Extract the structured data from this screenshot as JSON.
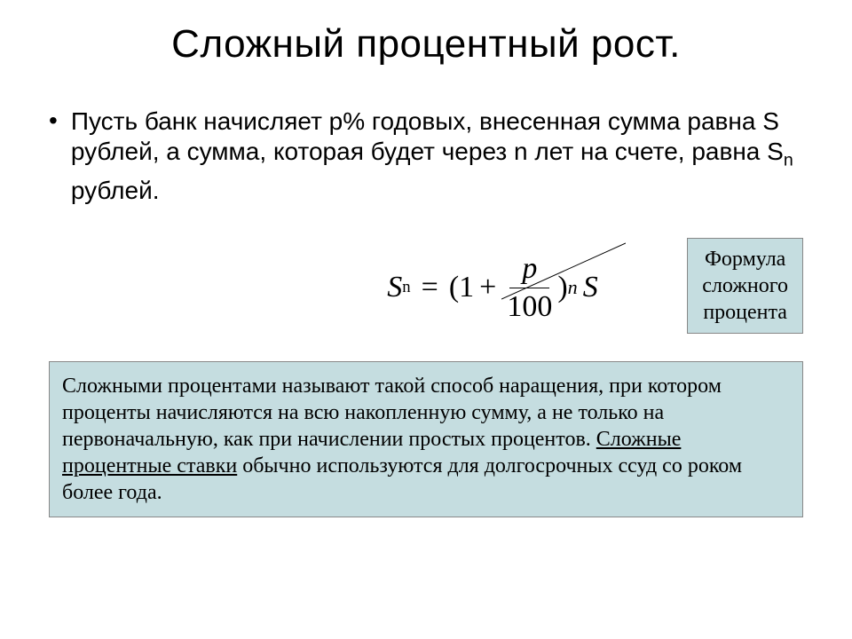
{
  "title": "Сложный процентный рост.",
  "bullet_html": "Пусть банк начисляет р% годовых, внесенная сумма равна S рублей, а сумма, которая будет через n лет на счете, равна S<span class=\"sub\">n</span> рублей.",
  "formula": {
    "lhs_var": "S",
    "lhs_sub": "n",
    "eq": "=",
    "one": "1",
    "plus": "+",
    "frac_num": "p",
    "frac_den": "100",
    "close_paren": ")",
    "exp": "n",
    "tail": "S"
  },
  "callout": {
    "line1": "Формула",
    "line2": "сложного",
    "line3": "процента",
    "bg": "#c5dde0"
  },
  "definition_html": "Сложными процентами называют такой способ наращения, при котором проценты начисляются на всю накопленную сумму, а не только на первоначальную, как при начислении простых процентов. <span class=\"underline\">Сложные процентные ставки</span> обычно используются для долгосрочных ссуд со роком более года.",
  "colors": {
    "background": "#ffffff",
    "box_bg": "#c5dde0",
    "text": "#000000"
  }
}
